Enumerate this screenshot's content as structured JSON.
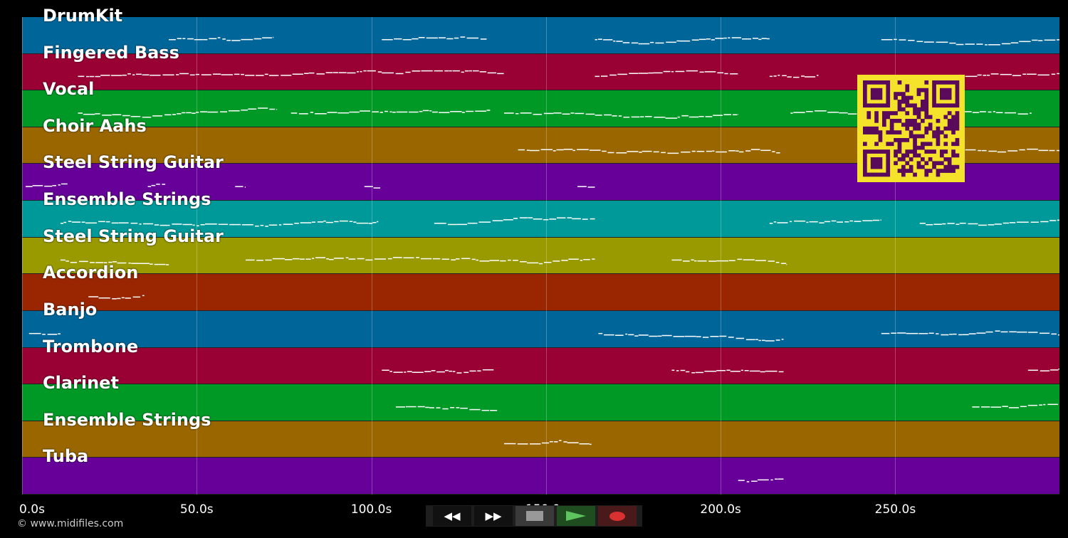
{
  "tracks": [
    {
      "name": "DrumKit",
      "color": "#006699",
      "notes": [
        [
          42,
          72
        ],
        [
          103,
          133
        ],
        [
          164,
          214
        ],
        [
          246,
          297
        ]
      ]
    },
    {
      "name": "Fingered Bass",
      "color": "#990033",
      "notes": [
        [
          16,
          138
        ],
        [
          164,
          205
        ],
        [
          214,
          228
        ],
        [
          270,
          297
        ]
      ]
    },
    {
      "name": "Vocal",
      "color": "#009926",
      "notes": [
        [
          16,
          73
        ],
        [
          77,
          134
        ],
        [
          138,
          205
        ],
        [
          220,
          289
        ]
      ]
    },
    {
      "name": "Choir Aahs",
      "color": "#996600",
      "notes": [
        [
          142,
          217
        ],
        [
          270,
          297
        ]
      ]
    },
    {
      "name": "Steel String Guitar",
      "color": "#660099",
      "notes": [
        [
          1,
          13
        ],
        [
          36,
          41
        ],
        [
          61,
          64
        ],
        [
          98,
          103
        ],
        [
          159,
          164
        ]
      ]
    },
    {
      "name": "Ensemble Strings",
      "color": "#009999",
      "notes": [
        [
          11,
          102
        ],
        [
          118,
          164
        ],
        [
          214,
          246
        ],
        [
          257,
          297
        ]
      ]
    },
    {
      "name": "Steel String Guitar",
      "color": "#999900",
      "notes": [
        [
          11,
          42
        ],
        [
          64,
          164
        ],
        [
          186,
          219
        ]
      ]
    },
    {
      "name": "Accordion",
      "color": "#992600",
      "notes": [
        [
          19,
          35
        ]
      ]
    },
    {
      "name": "Banjo",
      "color": "#006699",
      "notes": [
        [
          2,
          11
        ],
        [
          165,
          218
        ],
        [
          246,
          297
        ]
      ]
    },
    {
      "name": "Trombone",
      "color": "#990033",
      "notes": [
        [
          103,
          135
        ],
        [
          186,
          218
        ],
        [
          288,
          297
        ]
      ]
    },
    {
      "name": "Clarinet",
      "color": "#009926",
      "notes": [
        [
          107,
          136
        ],
        [
          272,
          297
        ]
      ]
    },
    {
      "name": "Ensemble Strings",
      "color": "#996600",
      "notes": [
        [
          138,
          163
        ]
      ]
    },
    {
      "name": "Tuba",
      "color": "#660099",
      "notes": [
        [
          205,
          218
        ]
      ]
    }
  ],
  "axis": {
    "ticks": [
      "0.0s",
      "50.0s",
      "100.0s",
      "150.0s",
      "200.0s",
      "250.0s"
    ],
    "tick_values": [
      0,
      50,
      100,
      150,
      200,
      250
    ],
    "max_seconds": 297
  },
  "controls": {
    "rewind_icon": "rewind-icon",
    "forward_icon": "fast-forward-icon",
    "stop_icon": "stop-icon",
    "play_icon": "play-icon",
    "record_icon": "record-icon"
  },
  "qr": {
    "fg": "#5a0a5a",
    "bg": "#f5e32b"
  },
  "footer": {
    "copyright": "© www.midifiles.com"
  }
}
